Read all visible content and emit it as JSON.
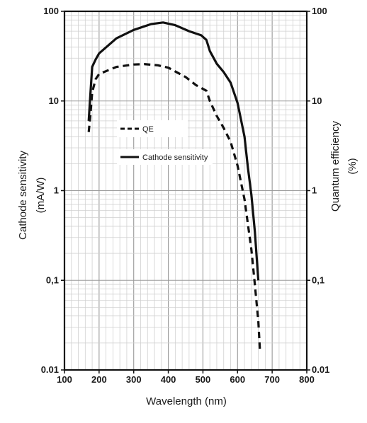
{
  "chart_data": {
    "type": "line",
    "xlabel": "Wavelength  (nm)",
    "ylabel_left": [
      "Cathode sensitivity",
      "(mA/W)"
    ],
    "ylabel_right": [
      "Quantum efficiency",
      "(%)"
    ],
    "xlim": [
      100,
      800
    ],
    "ylim": [
      0.01,
      100
    ],
    "yscale": "log",
    "grid": true,
    "x_ticks": [
      {
        "value": 100,
        "label": "100"
      },
      {
        "value": 200,
        "label": "200"
      },
      {
        "value": 300,
        "label": "300"
      },
      {
        "value": 400,
        "label": "400"
      },
      {
        "value": 500,
        "label": "500"
      },
      {
        "value": 600,
        "label": "600"
      },
      {
        "value": 700,
        "label": "700"
      },
      {
        "value": 800,
        "label": "800"
      }
    ],
    "y_ticks_left": [
      {
        "value": 100,
        "label": "100"
      },
      {
        "value": 10,
        "label": "10"
      },
      {
        "value": 1,
        "label": "1"
      },
      {
        "value": 0.1,
        "label": "0,1"
      },
      {
        "value": 0.01,
        "label": "0.01"
      }
    ],
    "y_ticks_right": [
      {
        "value": 100,
        "label": "100"
      },
      {
        "value": 10,
        "label": "10"
      },
      {
        "value": 1,
        "label": "1"
      },
      {
        "value": 0.1,
        "label": "0,1"
      },
      {
        "value": 0.01,
        "label": "0.01"
      }
    ],
    "legend_position": "upper-left",
    "series": [
      {
        "name": "QE",
        "style": "dashed",
        "color": "#111111",
        "points": [
          [
            170,
            4.5
          ],
          [
            175,
            7.0
          ],
          [
            180,
            12.5
          ],
          [
            190,
            17.5
          ],
          [
            200,
            20.0
          ],
          [
            250,
            24.0
          ],
          [
            300,
            25.5
          ],
          [
            330,
            25.8
          ],
          [
            370,
            25.0
          ],
          [
            400,
            23.5
          ],
          [
            450,
            18.5
          ],
          [
            480,
            15.0
          ],
          [
            510,
            13.0
          ],
          [
            520,
            10.0
          ],
          [
            540,
            6.8
          ],
          [
            560,
            5.0
          ],
          [
            580,
            3.5
          ],
          [
            600,
            1.9
          ],
          [
            620,
            0.8
          ],
          [
            640,
            0.22
          ],
          [
            650,
            0.09
          ],
          [
            660,
            0.035
          ],
          [
            665,
            0.016
          ]
        ]
      },
      {
        "name": "Cathode sensitivity",
        "style": "solid",
        "color": "#111111",
        "points": [
          [
            170,
            6.0
          ],
          [
            175,
            12.0
          ],
          [
            180,
            24.0
          ],
          [
            190,
            29.0
          ],
          [
            200,
            34.0
          ],
          [
            250,
            50.0
          ],
          [
            300,
            62.0
          ],
          [
            350,
            72.0
          ],
          [
            385,
            75.0
          ],
          [
            420,
            70.0
          ],
          [
            460,
            60.0
          ],
          [
            495,
            54.0
          ],
          [
            510,
            48.0
          ],
          [
            520,
            36.0
          ],
          [
            540,
            26.0
          ],
          [
            560,
            21.0
          ],
          [
            580,
            16.0
          ],
          [
            600,
            9.5
          ],
          [
            620,
            4.0
          ],
          [
            630,
            1.8
          ],
          [
            640,
            0.9
          ],
          [
            650,
            0.35
          ],
          [
            660,
            0.1
          ]
        ]
      }
    ]
  }
}
